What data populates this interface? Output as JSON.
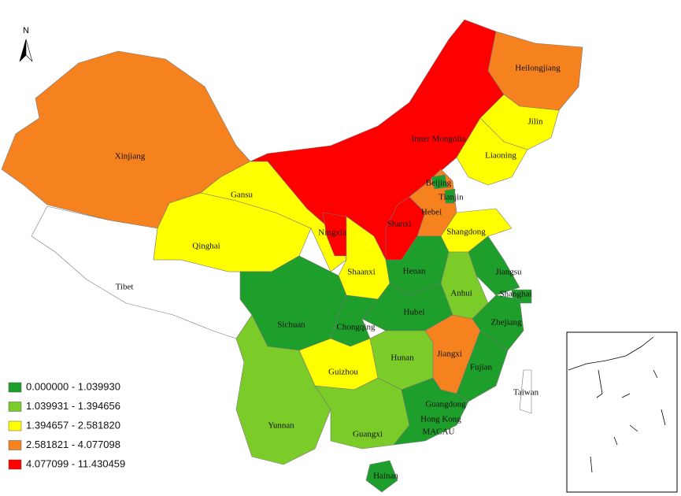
{
  "north": "N",
  "legend": [
    {
      "label": "0.000000 - 1.039930",
      "color": "#1e9e2a"
    },
    {
      "label": "1.039931 - 1.394656",
      "color": "#7ccc29"
    },
    {
      "label": "1.394657 - 2.581820",
      "color": "#ffff00"
    },
    {
      "label": "2.581821 - 4.077098",
      "color": "#f5821f"
    },
    {
      "label": "4.077099 - 11.430459",
      "color": "#ff0000"
    }
  ],
  "regions": [
    {
      "name": "Xinjiang",
      "color": "#f5821f"
    },
    {
      "name": "Tibet",
      "color": "#ffffff"
    },
    {
      "name": "Qinghai",
      "color": "#ffff00"
    },
    {
      "name": "Gansu",
      "color": "#ffff00"
    },
    {
      "name": "Inner Mongolia",
      "color": "#ff0000"
    },
    {
      "name": "Shanxi",
      "color": "#ff0000"
    },
    {
      "name": "Ningxia",
      "color": "#ff0000"
    },
    {
      "name": "Heilongjiang",
      "color": "#f5821f"
    },
    {
      "name": "Jilin",
      "color": "#ffff00"
    },
    {
      "name": "Liaoning",
      "color": "#ffff00"
    },
    {
      "name": "Hebei",
      "color": "#f5821f"
    },
    {
      "name": "Beijing",
      "color": "#1e9e2a"
    },
    {
      "name": "Tianjin",
      "color": "#1e9e2a"
    },
    {
      "name": "Shangdong",
      "color": "#ffff00"
    },
    {
      "name": "Shaanxi",
      "color": "#ffff00"
    },
    {
      "name": "Henan",
      "color": "#1e9e2a"
    },
    {
      "name": "Jiangsu",
      "color": "#1e9e2a"
    },
    {
      "name": "Shanghai",
      "color": "#1e9e2a"
    },
    {
      "name": "Anhui",
      "color": "#7ccc29"
    },
    {
      "name": "Hubei",
      "color": "#1e9e2a"
    },
    {
      "name": "Zhejiang",
      "color": "#1e9e2a"
    },
    {
      "name": "Sichuan",
      "color": "#1e9e2a"
    },
    {
      "name": "Chongqing",
      "color": "#1e9e2a"
    },
    {
      "name": "Hunan",
      "color": "#7ccc29"
    },
    {
      "name": "Jiangxi",
      "color": "#f5821f"
    },
    {
      "name": "Fujian",
      "color": "#1e9e2a"
    },
    {
      "name": "Guizhou",
      "color": "#ffff00"
    },
    {
      "name": "Yunnan",
      "color": "#7ccc29"
    },
    {
      "name": "Guangxi",
      "color": "#7ccc29"
    },
    {
      "name": "Guangdong",
      "color": "#1e9e2a"
    },
    {
      "name": "Hainan",
      "color": "#1e9e2a"
    },
    {
      "name": "Taiwan",
      "color": "#ffffff"
    },
    {
      "name": "Hong Kong"
    },
    {
      "name": "MACAU"
    }
  ]
}
